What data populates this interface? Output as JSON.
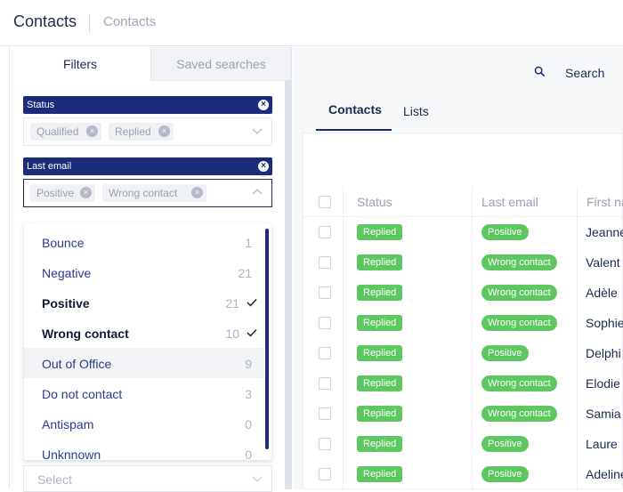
{
  "header": {
    "title": "Contacts",
    "breadcrumb": "Contacts"
  },
  "left_tabs": {
    "filters": "Filters",
    "saved_searches": "Saved searches"
  },
  "filters": [
    {
      "label": "Status",
      "tags": [
        "Qualified",
        "Replied"
      ],
      "open": false
    },
    {
      "label": "Last email",
      "tags": [
        "Positive",
        "Wrong contact"
      ],
      "open": true
    }
  ],
  "dropdown_options": [
    {
      "label": "Bounce",
      "count": "1",
      "selected": false
    },
    {
      "label": "Negative",
      "count": "21",
      "selected": false
    },
    {
      "label": "Positive",
      "count": "21",
      "selected": true
    },
    {
      "label": "Wrong contact",
      "count": "10",
      "selected": true
    },
    {
      "label": "Out of Office",
      "count": "9",
      "selected": false,
      "hovered": true
    },
    {
      "label": "Do not contact",
      "count": "3",
      "selected": false
    },
    {
      "label": "Antispam",
      "count": "0",
      "selected": false
    },
    {
      "label": "Unknnown",
      "count": "0",
      "selected": false
    }
  ],
  "next_select": {
    "placeholder": "Select"
  },
  "toolbar": {
    "search_label": "Search"
  },
  "content_tabs": {
    "contacts": "Contacts",
    "lists": "Lists"
  },
  "table": {
    "headers": {
      "status": "Status",
      "last_email": "Last email",
      "first_name": "First na"
    },
    "rows": [
      {
        "status": "Replied",
        "last_email": "Positive",
        "first_name": "Jeanne"
      },
      {
        "status": "Replied",
        "last_email": "Wrong contact",
        "first_name": "Valent"
      },
      {
        "status": "Replied",
        "last_email": "Wrong contact",
        "first_name": "Adèle"
      },
      {
        "status": "Replied",
        "last_email": "Wrong contact",
        "first_name": "Sophie"
      },
      {
        "status": "Replied",
        "last_email": "Positive",
        "first_name": "Delphi"
      },
      {
        "status": "Replied",
        "last_email": "Wrong contact",
        "first_name": "Elodie"
      },
      {
        "status": "Replied",
        "last_email": "Wrong contact",
        "first_name": "Samia"
      },
      {
        "status": "Replied",
        "last_email": "Positive",
        "first_name": "Laure"
      },
      {
        "status": "Replied",
        "last_email": "Positive",
        "first_name": "Adeline"
      }
    ]
  },
  "colors": {
    "primary": "#1a2c7a",
    "success": "#5cc85f",
    "text": "#1c2a52",
    "muted": "#9aa0b2"
  }
}
